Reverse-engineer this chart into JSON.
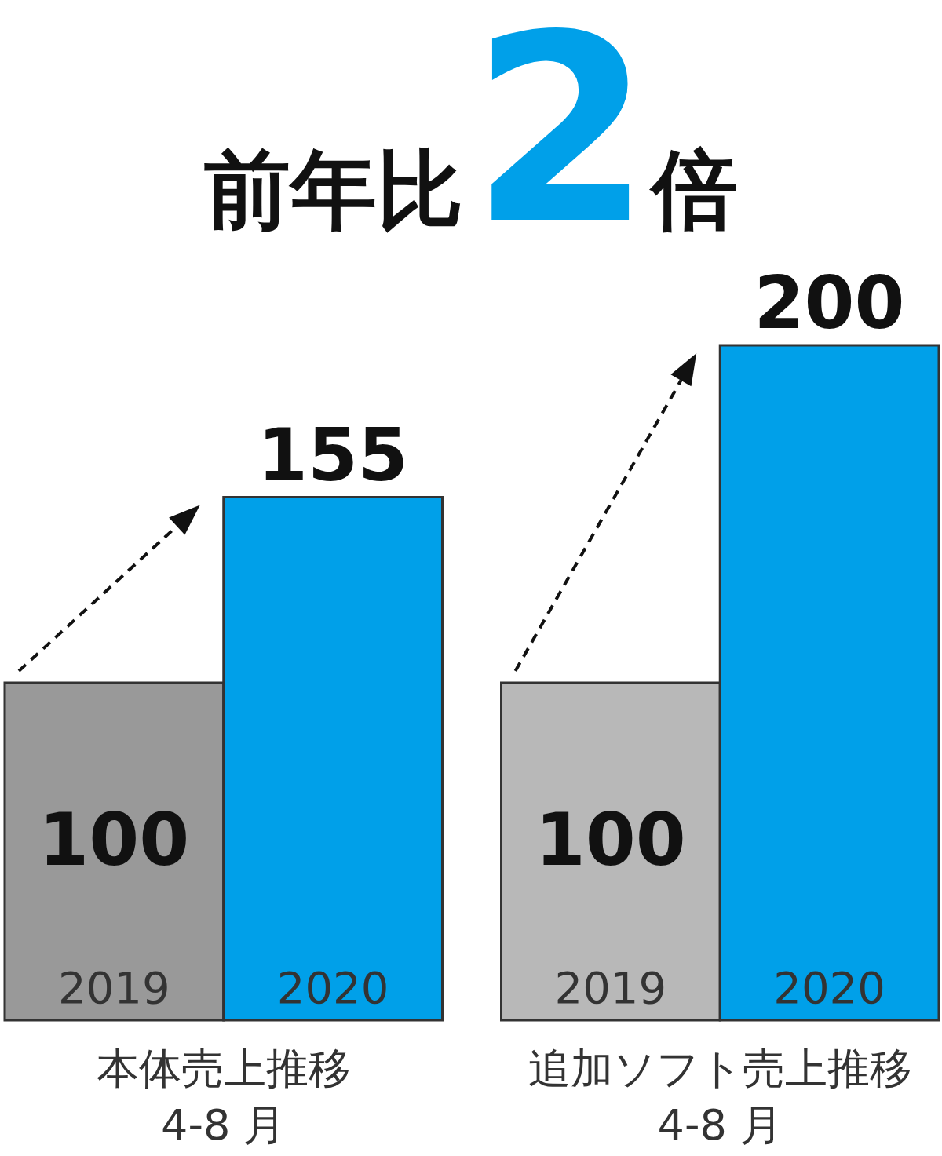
{
  "chart_data": [
    {
      "type": "bar",
      "title": "前年比2倍",
      "categories": [
        "2019",
        "2020"
      ],
      "values": [
        100,
        155
      ],
      "colors": [
        "#999999",
        "#00a0e9"
      ],
      "data_labels": true,
      "xlabel": "本体売上推移\n4-8 月"
    },
    {
      "type": "bar",
      "categories": [
        "2019",
        "2020"
      ],
      "values": [
        100,
        200
      ],
      "colors": [
        "#b8b8b8",
        "#00a0e9"
      ],
      "data_labels": true,
      "xlabel": "追加ソフト売上推移\n4-8 月"
    }
  ]
}
